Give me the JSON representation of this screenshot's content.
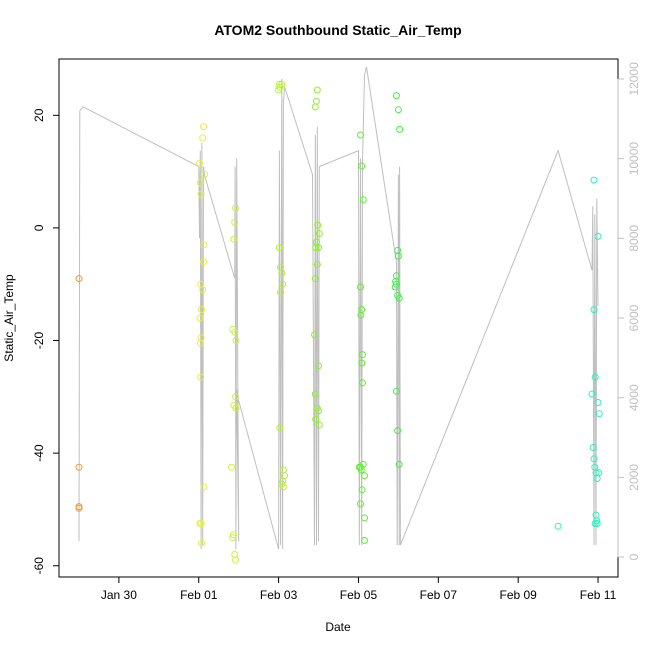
{
  "chart_data": {
    "type": "scatter",
    "title": "ATOM2 Southbound Static_Air_Temp",
    "xlabel": "Date",
    "ylabel": "Static_Air_Temp",
    "x_ticks": [
      {
        "label": "Jan 30",
        "day": 30
      },
      {
        "label": "Feb 01",
        "day": 32
      },
      {
        "label": "Feb 03",
        "day": 34
      },
      {
        "label": "Feb 05",
        "day": 36
      },
      {
        "label": "Feb 07",
        "day": 38
      },
      {
        "label": "Feb 09",
        "day": 40
      },
      {
        "label": "Feb 11",
        "day": 42
      }
    ],
    "xlim_days": [
      28.5,
      42.5
    ],
    "ylim": [
      -62,
      30
    ],
    "y_ticks": [
      -60,
      -40,
      -20,
      0,
      20
    ],
    "y2lim": [
      -500,
      12500
    ],
    "y2_ticks": [
      0,
      2000,
      4000,
      6000,
      8000,
      10000,
      12000
    ],
    "grid": false,
    "axis_color": "#bfbfbf",
    "altitude_line_color": "#bfbfbf",
    "series": [
      {
        "color": "#f2992e",
        "points": [
          [
            29.0,
            -9
          ],
          [
            29.0,
            -42.5
          ],
          [
            29.0,
            -49.5
          ],
          [
            29.0,
            -49.8
          ]
        ]
      },
      {
        "color": "#e3f23a",
        "points": [
          [
            32.02,
            11.5
          ],
          [
            32.04,
            8
          ],
          [
            32.06,
            6
          ],
          [
            32.05,
            -10
          ],
          [
            32.07,
            -14.5
          ],
          [
            32.03,
            -16
          ],
          [
            32.06,
            -19.5
          ],
          [
            32.04,
            -20.5
          ],
          [
            32.05,
            -26.5
          ],
          [
            32.03,
            -52.5
          ],
          [
            32.06,
            -52.5
          ],
          [
            32.07,
            -56
          ],
          [
            32.12,
            18
          ],
          [
            32.1,
            16
          ],
          [
            32.15,
            9.5
          ],
          [
            32.13,
            -3
          ],
          [
            32.12,
            -6
          ],
          [
            32.1,
            -11
          ],
          [
            32.13,
            -46
          ]
        ]
      },
      {
        "color": "#cdf234",
        "points": [
          [
            32.92,
            3.5
          ],
          [
            32.9,
            1
          ],
          [
            32.88,
            -2
          ],
          [
            32.85,
            -18
          ],
          [
            32.9,
            -18.5
          ],
          [
            32.93,
            -20
          ],
          [
            32.92,
            -30
          ],
          [
            32.88,
            -31.5
          ],
          [
            32.93,
            -32
          ],
          [
            32.82,
            -42.5
          ],
          [
            32.87,
            -54.5
          ],
          [
            32.85,
            -55
          ],
          [
            32.9,
            -58
          ],
          [
            32.92,
            -59
          ]
        ]
      },
      {
        "color": "#b4f229",
        "points": [
          [
            34.02,
            25.5
          ],
          [
            34.08,
            25.5
          ],
          [
            34.03,
            25
          ],
          [
            34.0,
            24.5
          ],
          [
            34.02,
            -3.5
          ],
          [
            34.05,
            -7
          ],
          [
            34.08,
            -8
          ],
          [
            34.1,
            -10
          ],
          [
            34.05,
            -11.5
          ],
          [
            34.03,
            -35.5
          ],
          [
            34.12,
            -43
          ],
          [
            34.15,
            -44
          ],
          [
            34.1,
            -45
          ],
          [
            34.08,
            -45.5
          ],
          [
            34.12,
            -46
          ]
        ]
      },
      {
        "color": "#8df229",
        "points": [
          [
            34.97,
            24.5
          ],
          [
            34.95,
            22.5
          ],
          [
            34.92,
            21.5
          ],
          [
            34.98,
            0.5
          ],
          [
            35.02,
            -1
          ],
          [
            34.95,
            -2.5
          ],
          [
            35.0,
            -3.5
          ],
          [
            34.93,
            -3.5
          ],
          [
            34.97,
            -6.5
          ],
          [
            34.92,
            -9
          ],
          [
            34.9,
            -19
          ],
          [
            35.0,
            -24.5
          ],
          [
            34.92,
            -29.5
          ],
          [
            34.97,
            -32
          ],
          [
            35.0,
            -32.5
          ],
          [
            34.93,
            -34
          ],
          [
            35.02,
            -35
          ]
        ]
      },
      {
        "color": "#5ef229",
        "points": [
          [
            36.05,
            16.5
          ],
          [
            36.08,
            11
          ],
          [
            36.12,
            5
          ],
          [
            36.05,
            -10.5
          ],
          [
            36.08,
            -14.5
          ],
          [
            36.06,
            -15.5
          ],
          [
            36.1,
            -22.5
          ],
          [
            36.08,
            -24
          ],
          [
            36.1,
            -27.5
          ],
          [
            36.02,
            -42.5
          ],
          [
            36.05,
            -42.5
          ],
          [
            36.07,
            -43
          ],
          [
            36.12,
            -42
          ],
          [
            36.15,
            -44
          ],
          [
            36.09,
            -46.5
          ],
          [
            36.05,
            -49
          ],
          [
            36.15,
            -51.5
          ],
          [
            36.15,
            -55.5
          ]
        ]
      },
      {
        "color": "#3ef246",
        "points": [
          [
            36.95,
            23.5
          ],
          [
            37.0,
            21
          ],
          [
            37.03,
            17.5
          ],
          [
            36.98,
            -4
          ],
          [
            37.0,
            -5
          ],
          [
            36.95,
            -8.5
          ],
          [
            36.93,
            -9.5
          ],
          [
            36.95,
            -10
          ],
          [
            36.92,
            -10.5
          ],
          [
            36.98,
            -12
          ],
          [
            37.02,
            -12.5
          ],
          [
            36.95,
            -29
          ],
          [
            36.98,
            -36
          ],
          [
            37.02,
            -42
          ]
        ]
      },
      {
        "color": "#2cf2c0",
        "points": [
          [
            41.0,
            -53
          ],
          [
            41.9,
            8.5
          ],
          [
            42.0,
            -1.5
          ],
          [
            41.9,
            -14.5
          ],
          [
            41.93,
            -26.5
          ],
          [
            42.0,
            -31
          ],
          [
            42.03,
            -33
          ],
          [
            41.85,
            -29.5
          ],
          [
            41.88,
            -39
          ],
          [
            41.9,
            -41
          ],
          [
            41.92,
            -42.5
          ],
          [
            41.95,
            -43.5
          ],
          [
            42.02,
            -43.5
          ],
          [
            41.98,
            -44.5
          ],
          [
            41.95,
            -51
          ],
          [
            41.97,
            -52
          ],
          [
            41.93,
            -52.5
          ],
          [
            41.98,
            -52.5
          ]
        ]
      }
    ],
    "altitude_line": [
      [
        29.0,
        400
      ],
      [
        29.02,
        11200
      ],
      [
        29.1,
        11300
      ],
      [
        32.0,
        9800
      ],
      [
        32.02,
        8000
      ],
      [
        32.04,
        10200
      ],
      [
        32.06,
        200
      ],
      [
        32.08,
        10400
      ],
      [
        32.1,
        300
      ],
      [
        32.12,
        9800
      ],
      [
        32.14,
        9600
      ],
      [
        32.9,
        7000
      ],
      [
        32.91,
        9800
      ],
      [
        32.93,
        200
      ],
      [
        32.95,
        10000
      ],
      [
        33.0,
        400
      ],
      [
        32.95,
        4200
      ],
      [
        32.98,
        4000
      ],
      [
        34.0,
        200
      ],
      [
        34.02,
        10200
      ],
      [
        34.05,
        300
      ],
      [
        34.08,
        12000
      ],
      [
        34.1,
        200
      ],
      [
        34.12,
        11400
      ],
      [
        34.15,
        11800
      ],
      [
        34.85,
        9600
      ],
      [
        34.9,
        300
      ],
      [
        34.92,
        10600
      ],
      [
        34.95,
        300
      ],
      [
        34.97,
        10800
      ],
      [
        35.0,
        400
      ],
      [
        35.02,
        9800
      ],
      [
        36.0,
        10200
      ],
      [
        36.02,
        300
      ],
      [
        36.05,
        10000
      ],
      [
        36.08,
        300
      ],
      [
        36.1,
        9900
      ],
      [
        36.15,
        12100
      ],
      [
        36.2,
        12300
      ],
      [
        36.95,
        7400
      ],
      [
        36.97,
        300
      ],
      [
        37.0,
        9600
      ],
      [
        37.02,
        300
      ],
      [
        37.03,
        9800
      ],
      [
        37.05,
        300
      ],
      [
        41.0,
        10200
      ],
      [
        41.85,
        7200
      ],
      [
        41.87,
        8800
      ],
      [
        41.9,
        300
      ],
      [
        41.92,
        8600
      ],
      [
        41.95,
        300
      ],
      [
        41.97,
        9000
      ],
      [
        42.0,
        6300
      ]
    ]
  }
}
